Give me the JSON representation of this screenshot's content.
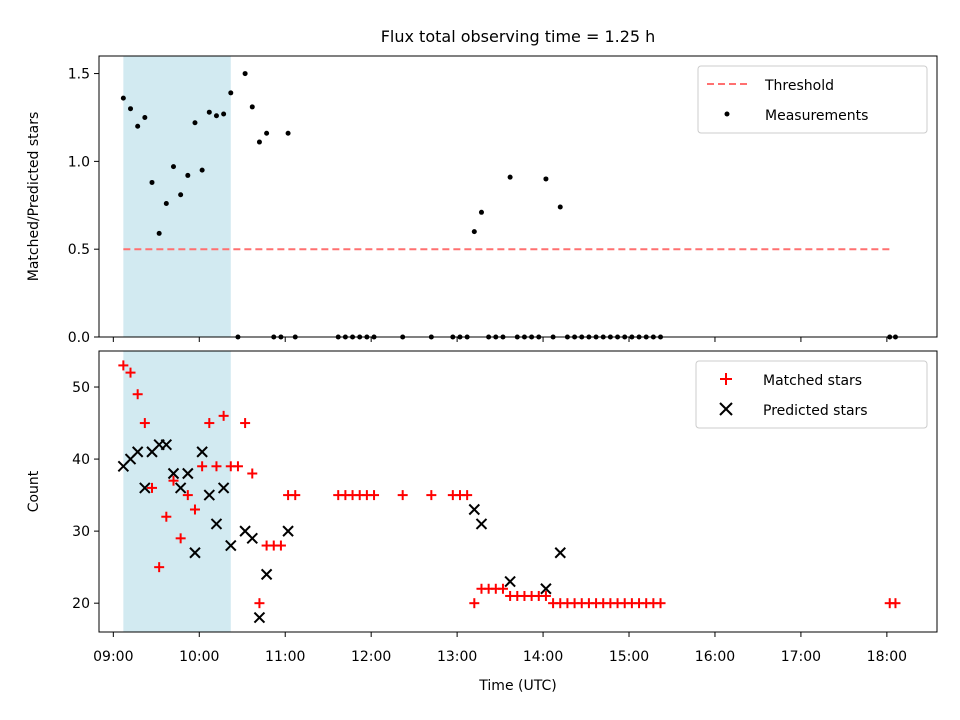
{
  "title": "Flux total observing time = 1.25 h",
  "xlabel": "Time (UTC)",
  "x_ticks": [
    "09:00",
    "10:00",
    "11:00",
    "12:00",
    "13:00",
    "14:00",
    "15:00",
    "16:00",
    "17:00",
    "18:00"
  ],
  "colors": {
    "threshold": "#ff7070",
    "measurements": "#000000",
    "matched": "#ff0000",
    "predicted": "#000000",
    "span": "#add8e6"
  },
  "chart_data": [
    {
      "type": "scatter",
      "ylabel": "Matched/Predicted stars",
      "xlim": [
        "08:50",
        "18:35"
      ],
      "ylim": [
        0,
        1.6
      ],
      "y_ticks": [
        "0.0",
        "0.5",
        "1.0",
        "1.5"
      ],
      "shaded_span": [
        "09:07",
        "10:22"
      ],
      "legend_position": "top-right",
      "legend": [
        "Threshold",
        "Measurements"
      ],
      "threshold": {
        "name": "Threshold",
        "style": "dashed",
        "y": 0.5,
        "x": [
          "09:07",
          "18:03"
        ]
      },
      "series": [
        {
          "name": "Measurements",
          "marker": "dot",
          "points": [
            [
              "09:07",
              1.36
            ],
            [
              "09:12",
              1.3
            ],
            [
              "09:17",
              1.2
            ],
            [
              "09:22",
              1.25
            ],
            [
              "09:27",
              0.88
            ],
            [
              "09:32",
              0.59
            ],
            [
              "09:37",
              0.76
            ],
            [
              "09:42",
              0.97
            ],
            [
              "09:47",
              0.81
            ],
            [
              "09:52",
              0.92
            ],
            [
              "09:57",
              1.22
            ],
            [
              "10:02",
              0.95
            ],
            [
              "10:07",
              1.28
            ],
            [
              "10:12",
              1.26
            ],
            [
              "10:17",
              1.27
            ],
            [
              "10:22",
              1.39
            ],
            [
              "10:27",
              0.0
            ],
            [
              "10:32",
              1.5
            ],
            [
              "10:37",
              1.31
            ],
            [
              "10:42",
              1.11
            ],
            [
              "10:47",
              1.16
            ],
            [
              "10:52",
              0.0
            ],
            [
              "10:57",
              0.0
            ],
            [
              "11:02",
              1.16
            ],
            [
              "11:07",
              0.0
            ],
            [
              "11:37",
              0.0
            ],
            [
              "11:42",
              0.0
            ],
            [
              "11:47",
              0.0
            ],
            [
              "11:52",
              0.0
            ],
            [
              "11:57",
              0.0
            ],
            [
              "12:02",
              0.0
            ],
            [
              "12:22",
              0.0
            ],
            [
              "12:42",
              0.0
            ],
            [
              "12:57",
              0.0
            ],
            [
              "13:02",
              0.0
            ],
            [
              "13:07",
              0.0
            ],
            [
              "13:12",
              0.6
            ],
            [
              "13:17",
              0.71
            ],
            [
              "13:22",
              0.0
            ],
            [
              "13:27",
              0.0
            ],
            [
              "13:32",
              0.0
            ],
            [
              "13:37",
              0.91
            ],
            [
              "13:42",
              0.0
            ],
            [
              "13:47",
              0.0
            ],
            [
              "13:52",
              0.0
            ],
            [
              "13:57",
              0.0
            ],
            [
              "14:02",
              0.9
            ],
            [
              "14:07",
              0.0
            ],
            [
              "14:12",
              0.74
            ],
            [
              "14:17",
              0.0
            ],
            [
              "14:22",
              0.0
            ],
            [
              "14:27",
              0.0
            ],
            [
              "14:32",
              0.0
            ],
            [
              "14:37",
              0.0
            ],
            [
              "14:42",
              0.0
            ],
            [
              "14:47",
              0.0
            ],
            [
              "14:52",
              0.0
            ],
            [
              "14:57",
              0.0
            ],
            [
              "15:02",
              0.0
            ],
            [
              "15:07",
              0.0
            ],
            [
              "15:12",
              0.0
            ],
            [
              "15:17",
              0.0
            ],
            [
              "15:22",
              0.0
            ],
            [
              "18:02",
              0.0
            ],
            [
              "18:06",
              0.0
            ]
          ]
        }
      ]
    },
    {
      "type": "scatter",
      "ylabel": "Count",
      "xlim": [
        "08:50",
        "18:35"
      ],
      "ylim": [
        16,
        55
      ],
      "y_ticks": [
        "20",
        "30",
        "40",
        "50"
      ],
      "shaded_span": [
        "09:07",
        "10:22"
      ],
      "legend_position": "top-right",
      "legend": [
        "Matched stars",
        "Predicted stars"
      ],
      "series": [
        {
          "name": "Matched stars",
          "marker": "plus",
          "points": [
            [
              "09:07",
              53
            ],
            [
              "09:12",
              52
            ],
            [
              "09:17",
              49
            ],
            [
              "09:22",
              45
            ],
            [
              "09:27",
              36
            ],
            [
              "09:32",
              25
            ],
            [
              "09:37",
              32
            ],
            [
              "09:42",
              37
            ],
            [
              "09:47",
              29
            ],
            [
              "09:52",
              35
            ],
            [
              "09:57",
              33
            ],
            [
              "10:02",
              39
            ],
            [
              "10:07",
              45
            ],
            [
              "10:12",
              39
            ],
            [
              "10:17",
              46
            ],
            [
              "10:22",
              39
            ],
            [
              "10:27",
              39
            ],
            [
              "10:32",
              45
            ],
            [
              "10:37",
              38
            ],
            [
              "10:42",
              20
            ],
            [
              "10:47",
              28
            ],
            [
              "10:52",
              28
            ],
            [
              "10:57",
              28
            ],
            [
              "11:02",
              35
            ],
            [
              "11:07",
              35
            ],
            [
              "11:37",
              35
            ],
            [
              "11:42",
              35
            ],
            [
              "11:47",
              35
            ],
            [
              "11:52",
              35
            ],
            [
              "11:57",
              35
            ],
            [
              "12:02",
              35
            ],
            [
              "12:22",
              35
            ],
            [
              "12:42",
              35
            ],
            [
              "12:57",
              35
            ],
            [
              "13:02",
              35
            ],
            [
              "13:07",
              35
            ],
            [
              "13:12",
              20
            ],
            [
              "13:17",
              22
            ],
            [
              "13:22",
              22
            ],
            [
              "13:27",
              22
            ],
            [
              "13:32",
              22
            ],
            [
              "13:37",
              21
            ],
            [
              "13:42",
              21
            ],
            [
              "13:47",
              21
            ],
            [
              "13:52",
              21
            ],
            [
              "13:57",
              21
            ],
            [
              "14:02",
              21
            ],
            [
              "14:07",
              20
            ],
            [
              "14:12",
              20
            ],
            [
              "14:17",
              20
            ],
            [
              "14:22",
              20
            ],
            [
              "14:27",
              20
            ],
            [
              "14:32",
              20
            ],
            [
              "14:37",
              20
            ],
            [
              "14:42",
              20
            ],
            [
              "14:47",
              20
            ],
            [
              "14:52",
              20
            ],
            [
              "14:57",
              20
            ],
            [
              "15:02",
              20
            ],
            [
              "15:07",
              20
            ],
            [
              "15:12",
              20
            ],
            [
              "15:17",
              20
            ],
            [
              "15:22",
              20
            ],
            [
              "18:02",
              20
            ],
            [
              "18:06",
              20
            ]
          ]
        },
        {
          "name": "Predicted stars",
          "marker": "x",
          "points": [
            [
              "09:07",
              39
            ],
            [
              "09:12",
              40
            ],
            [
              "09:17",
              41
            ],
            [
              "09:22",
              36
            ],
            [
              "09:27",
              41
            ],
            [
              "09:32",
              42
            ],
            [
              "09:37",
              42
            ],
            [
              "09:42",
              38
            ],
            [
              "09:47",
              36
            ],
            [
              "09:52",
              38
            ],
            [
              "09:57",
              27
            ],
            [
              "10:02",
              41
            ],
            [
              "10:07",
              35
            ],
            [
              "10:12",
              31
            ],
            [
              "10:17",
              36
            ],
            [
              "10:22",
              28
            ],
            [
              "10:32",
              30
            ],
            [
              "10:37",
              29
            ],
            [
              "10:42",
              18
            ],
            [
              "10:47",
              24
            ],
            [
              "11:02",
              30
            ],
            [
              "13:12",
              33
            ],
            [
              "13:17",
              31
            ],
            [
              "13:37",
              23
            ],
            [
              "14:02",
              22
            ],
            [
              "14:12",
              27
            ]
          ]
        }
      ]
    }
  ]
}
